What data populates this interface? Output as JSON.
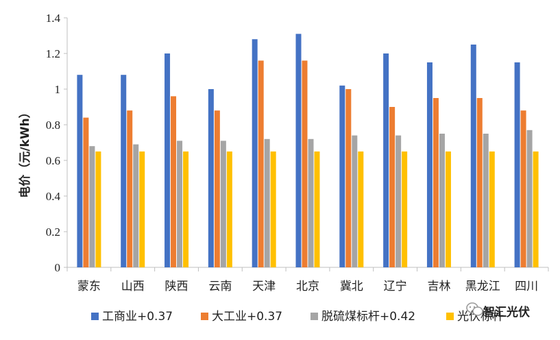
{
  "chart_data": {
    "type": "bar",
    "categories": [
      "蒙东",
      "山西",
      "陕西",
      "云南",
      "天津",
      "北京",
      "冀北",
      "辽宁",
      "吉林",
      "黑龙江",
      "四川"
    ],
    "series": [
      {
        "name": "工商业+0.37",
        "color": "#4472C4",
        "values": [
          1.08,
          1.08,
          1.2,
          1.0,
          1.28,
          1.31,
          1.02,
          1.2,
          1.15,
          1.25,
          1.15
        ]
      },
      {
        "name": "大工业+0.37",
        "color": "#ED7D31",
        "values": [
          0.84,
          0.88,
          0.96,
          0.88,
          1.16,
          1.16,
          1.0,
          0.9,
          0.95,
          0.95,
          0.88
        ]
      },
      {
        "name": "脱硫煤标杆+0.42",
        "color": "#A5A5A5",
        "values": [
          0.68,
          0.69,
          0.71,
          0.71,
          0.72,
          0.72,
          0.74,
          0.74,
          0.75,
          0.75,
          0.77
        ]
      },
      {
        "name": "光伏标杆",
        "color": "#FFC000",
        "values": [
          0.65,
          0.65,
          0.65,
          0.65,
          0.65,
          0.65,
          0.65,
          0.65,
          0.65,
          0.65,
          0.65
        ]
      }
    ],
    "ylabel": "电价（元/kWh）",
    "ylim": [
      0,
      1.4
    ],
    "yticks": [
      "0",
      "0.2",
      "0.4",
      "0.6",
      "0.8",
      "1",
      "1.2",
      "1.4"
    ],
    "grid": false,
    "legend_position": "bottom"
  },
  "watermark": {
    "text": "智汇光伏",
    "icon": "wechat-icon"
  },
  "colors": {
    "axis": "#bfbfbf",
    "text": "#222222"
  }
}
